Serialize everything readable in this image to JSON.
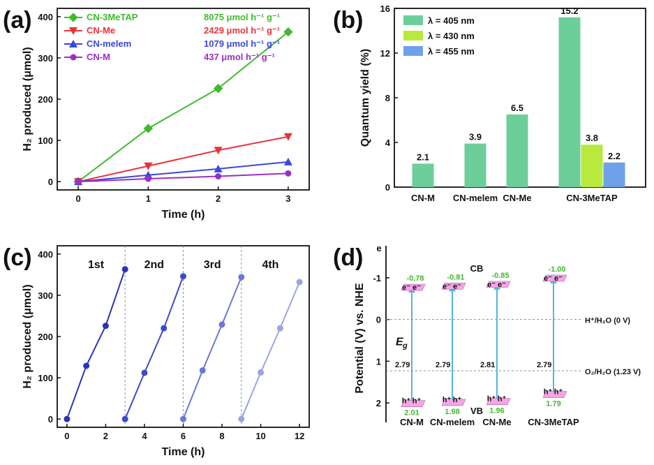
{
  "chart_data": [
    {
      "panel": "(a)",
      "type": "line",
      "xlabel": "Time (h)",
      "ylabel": "H₂ produced (μmol)",
      "xlim": [
        -0.3,
        3.3
      ],
      "ylim": [
        -20,
        420
      ],
      "xticks": [
        0,
        1,
        2,
        3
      ],
      "yticks": [
        0,
        100,
        200,
        300,
        400
      ],
      "legend_position": "top-left",
      "series": [
        {
          "name": "CN-3MeTAP",
          "rate": "8075 μmol h⁻¹ g⁻¹",
          "color": "#3dbb2c",
          "marker": "diamond",
          "x": [
            0,
            1,
            2,
            3
          ],
          "values": [
            0,
            129,
            226,
            363
          ]
        },
        {
          "name": "CN-Me",
          "rate": "2429 μmol h⁻¹ g⁻¹",
          "color": "#e8333c",
          "marker": "triangle-down",
          "x": [
            0,
            1,
            2,
            3
          ],
          "values": [
            0,
            38,
            76,
            109
          ]
        },
        {
          "name": "CN-melem",
          "rate": "1079 μmol h⁻¹ g⁻¹",
          "color": "#3b47d6",
          "marker": "triangle-up",
          "x": [
            0,
            1,
            2,
            3
          ],
          "values": [
            0,
            16,
            31,
            48
          ]
        },
        {
          "name": "CN-M",
          "rate": "437 μmol h⁻¹ g⁻¹",
          "color": "#9a2fc4",
          "marker": "circle",
          "x": [
            0,
            1,
            2,
            3
          ],
          "values": [
            0,
            7,
            13,
            20
          ]
        }
      ]
    },
    {
      "panel": "(b)",
      "type": "bar",
      "ylabel": "Quantum yield (%)",
      "ylim": [
        0,
        16
      ],
      "yticks": [
        0,
        4,
        8,
        12,
        16
      ],
      "categories": [
        "CN-M",
        "CN-melem",
        "CN-Me",
        "CN-3MeTAP"
      ],
      "legend_position": "top-left",
      "series": [
        {
          "name": "λ = 405 nm",
          "color": "#6ccf9a",
          "values": [
            2.1,
            3.9,
            6.5,
            15.2
          ]
        },
        {
          "name": "λ = 430 nm",
          "color": "#b8ea3e",
          "values": [
            null,
            null,
            null,
            3.8
          ]
        },
        {
          "name": "λ = 455 nm",
          "color": "#6fa0ea",
          "values": [
            null,
            null,
            null,
            2.2
          ]
        }
      ],
      "data_labels": [
        "2.1",
        "3.9",
        "6.5",
        "15.2",
        "3.8",
        "2.2"
      ]
    },
    {
      "panel": "(c)",
      "type": "line",
      "xlabel": "Time (h)",
      "ylabel": "H₂ produced (μmol)",
      "xlim": [
        -0.5,
        12.5
      ],
      "ylim": [
        -20,
        420
      ],
      "xticks": [
        0,
        2,
        4,
        6,
        8,
        10,
        12
      ],
      "yticks": [
        0,
        100,
        200,
        300,
        400
      ],
      "cycle_dividers": [
        3,
        6,
        9
      ],
      "cycles": [
        {
          "name": "1st",
          "color": "#2b34b8",
          "x": [
            0,
            1,
            2,
            3
          ],
          "values": [
            0,
            129,
            226,
            363
          ]
        },
        {
          "name": "2nd",
          "color": "#3b4bc8",
          "x": [
            3,
            4,
            5,
            6
          ],
          "values": [
            0,
            112,
            220,
            346
          ]
        },
        {
          "name": "3rd",
          "color": "#6a78d6",
          "x": [
            6,
            7,
            8,
            9
          ],
          "values": [
            0,
            118,
            229,
            344
          ]
        },
        {
          "name": "4th",
          "color": "#9aa4e2",
          "x": [
            9,
            10,
            11,
            12
          ],
          "values": [
            0,
            113,
            220,
            332
          ]
        }
      ]
    },
    {
      "panel": "(d)",
      "type": "diagram",
      "ylabel": "Potential (V) vs. NHE",
      "yaxis_top_label": "e",
      "ylim": [
        -1.3,
        2.3
      ],
      "yticks": [
        -1,
        0,
        1,
        2
      ],
      "yticklabels": [
        "-1",
        "0",
        "1",
        "2"
      ],
      "cb_label": "CB",
      "vb_label": "VB",
      "gap_label": "E",
      "gap_label_sub": "g",
      "reference_lines": [
        {
          "label": "H⁺/H₂O (0 V)",
          "potential": 0
        },
        {
          "label": "O₂/H₂O (1.23 V)",
          "potential": 1.23
        }
      ],
      "materials": [
        {
          "name": "CN-M",
          "cb": -0.78,
          "vb": 2.01,
          "cb_label": "-0.78",
          "vb_label": "2.01",
          "gap": "2.79"
        },
        {
          "name": "CN-melem",
          "cb": -0.81,
          "vb": 1.98,
          "cb_label": "-0.81",
          "vb_label": "1.98",
          "gap": "2.79"
        },
        {
          "name": "CN-Me",
          "cb": -0.85,
          "vb": 1.96,
          "cb_label": "-0.85",
          "vb_label": "1.96",
          "gap": "2.81"
        },
        {
          "name": "CN-3MeTAP",
          "cb": -1.0,
          "vb": 1.79,
          "cb_label": "-1.00",
          "vb_label": "1.79",
          "gap": "2.79"
        }
      ],
      "electron_label": "e⁻",
      "hole_label": "h⁺"
    }
  ],
  "colors": {
    "axis": "#111111",
    "cb_label": "#e8333c",
    "vb_label": "#e8333c",
    "band_value": "#3dbb2c",
    "arrow": "#56b4dd",
    "plate": "#f3a6e6",
    "refline": "#7a8fb0"
  }
}
